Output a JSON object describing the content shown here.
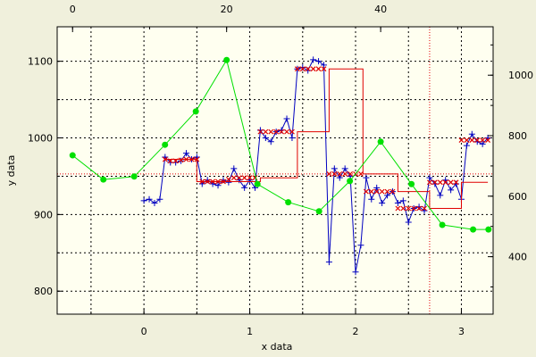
{
  "chart_data": {
    "type": "line",
    "title": "",
    "xlabel": "x data",
    "ylabel": "y data",
    "grid": true,
    "background": "#f0f0dc",
    "plot_background": "#fffff0",
    "grid_color": "#000000",
    "bottom_axis": {
      "range": [
        -0.82,
        3.3
      ],
      "ticks": [
        0,
        1,
        2,
        3
      ],
      "labels": [
        "0",
        "1",
        "2",
        "3"
      ],
      "grid_ticks": [
        -0.5,
        0,
        0.5,
        1,
        1.5,
        2,
        2.5,
        3
      ]
    },
    "top_axis": {
      "range": [
        -2.0,
        54.6
      ],
      "ticks": [
        0,
        20,
        40
      ],
      "labels": [
        "0",
        "20",
        "40"
      ]
    },
    "left_axis": {
      "range": [
        770,
        1145
      ],
      "ticks": [
        800,
        900,
        1000,
        1100
      ],
      "labels": [
        "800",
        "900",
        "1000",
        "1100"
      ],
      "grid_ticks": [
        800,
        850,
        900,
        950,
        1000,
        1050,
        1100
      ]
    },
    "right_axis": {
      "range": [
        210,
        1160
      ],
      "ticks": [
        400,
        600,
        800,
        1000
      ],
      "labels": [
        "400",
        "600",
        "800",
        "1000"
      ]
    },
    "reference_lines": {
      "horizontal": {
        "axis": "left",
        "value": 953,
        "color": "#e00000"
      },
      "vertical": {
        "axis": "bottom",
        "value": 2.7,
        "color": "#e00000"
      }
    },
    "series": [
      {
        "style": "markers",
        "marker": "plus",
        "color": "#0000c0",
        "axes": [
          "bottom",
          "left"
        ],
        "x": [
          0.0,
          0.05,
          0.1,
          0.15,
          0.2,
          0.25,
          0.3,
          0.35,
          0.4,
          0.45,
          0.5,
          0.55,
          0.6,
          0.65,
          0.7,
          0.75,
          0.8,
          0.85,
          0.9,
          0.95,
          1.0,
          1.05,
          1.1,
          1.15,
          1.2,
          1.25,
          1.3,
          1.35,
          1.4,
          1.45,
          1.5,
          1.55,
          1.6,
          1.65,
          1.7,
          1.75,
          1.8,
          1.85,
          1.9,
          1.95,
          2.0,
          2.05,
          2.1,
          2.15,
          2.2,
          2.25,
          2.3,
          2.35,
          2.4,
          2.45,
          2.5,
          2.55,
          2.6,
          2.65,
          2.7,
          2.75,
          2.8,
          2.85,
          2.9,
          2.95,
          3.0,
          3.05,
          3.1,
          3.15,
          3.2,
          3.25
        ],
        "y": [
          918,
          920,
          915,
          920,
          975,
          968,
          968,
          970,
          980,
          972,
          975,
          940,
          945,
          940,
          938,
          945,
          942,
          960,
          945,
          935,
          945,
          935,
          1010,
          1000,
          995,
          1008,
          1010,
          1025,
          1000,
          1090,
          1092,
          1088,
          1102,
          1100,
          1095,
          838,
          960,
          948,
          960,
          950,
          825,
          860,
          948,
          920,
          935,
          915,
          925,
          930,
          915,
          918,
          890,
          908,
          910,
          905,
          948,
          940,
          925,
          945,
          932,
          940,
          920,
          990,
          1005,
          995,
          992,
          1000
        ]
      },
      {
        "style": "line",
        "color": "#0000c0",
        "axes": [
          "bottom",
          "left"
        ],
        "x": [
          0.0,
          0.05,
          0.1,
          0.15,
          0.2,
          0.25,
          0.3,
          0.35,
          0.4,
          0.45,
          0.5,
          0.55,
          0.6,
          0.65,
          0.7,
          0.75,
          0.8,
          0.85,
          0.9,
          0.95,
          1.0,
          1.05,
          1.1,
          1.15,
          1.2,
          1.25,
          1.3,
          1.35,
          1.4,
          1.45,
          1.5,
          1.55,
          1.6,
          1.65,
          1.7,
          1.75,
          1.8,
          1.85,
          1.9,
          1.95,
          2.0,
          2.05,
          2.1,
          2.15,
          2.2,
          2.25,
          2.3,
          2.35,
          2.4,
          2.45,
          2.5,
          2.55,
          2.6,
          2.65,
          2.7,
          2.75,
          2.8,
          2.85,
          2.9,
          2.95,
          3.0,
          3.05,
          3.1,
          3.15,
          3.2,
          3.25
        ],
        "y": [
          918,
          920,
          915,
          920,
          975,
          968,
          968,
          970,
          980,
          972,
          975,
          940,
          945,
          940,
          938,
          945,
          942,
          960,
          945,
          935,
          945,
          935,
          1010,
          1000,
          995,
          1008,
          1010,
          1025,
          1000,
          1090,
          1092,
          1088,
          1102,
          1100,
          1095,
          838,
          960,
          948,
          960,
          950,
          825,
          860,
          948,
          920,
          935,
          915,
          925,
          930,
          915,
          918,
          890,
          908,
          910,
          905,
          948,
          940,
          925,
          945,
          932,
          940,
          920,
          990,
          1005,
          995,
          992,
          1000
        ]
      },
      {
        "style": "markers",
        "marker": "x",
        "color": "#e00000",
        "axes": [
          "bottom",
          "left"
        ],
        "x": [
          0.2,
          0.25,
          0.3,
          0.35,
          0.4,
          0.45,
          0.5,
          0.55,
          0.6,
          0.65,
          0.7,
          0.75,
          0.8,
          0.85,
          0.9,
          0.95,
          1.0,
          1.05,
          1.1,
          1.15,
          1.2,
          1.25,
          1.3,
          1.35,
          1.4,
          1.45,
          1.5,
          1.55,
          1.6,
          1.65,
          1.7,
          1.75,
          1.8,
          1.85,
          1.9,
          1.95,
          2.0,
          2.05,
          2.1,
          2.15,
          2.2,
          2.25,
          2.3,
          2.35,
          2.4,
          2.45,
          2.5,
          2.55,
          2.6,
          2.65,
          2.7,
          2.75,
          2.8,
          2.85,
          2.9,
          2.95,
          3.0,
          3.05,
          3.1,
          3.15,
          3.2,
          3.25
        ],
        "y": [
          972,
          970,
          970,
          971,
          972,
          972,
          972,
          943,
          943,
          943,
          943,
          943,
          946,
          948,
          948,
          948,
          948,
          948,
          1008,
          1008,
          1008,
          1008,
          1008,
          1008,
          1008,
          1090,
          1090,
          1090,
          1090,
          1090,
          1090,
          953,
          953,
          953,
          953,
          953,
          953,
          953,
          930,
          930,
          930,
          930,
          930,
          930,
          908,
          908,
          908,
          908,
          908,
          908,
          942,
          942,
          942,
          942,
          942,
          942,
          997,
          997,
          997,
          997,
          997,
          997
        ]
      },
      {
        "style": "step-line",
        "color": "#e00000",
        "axes": [
          "bottom",
          "left"
        ],
        "x": [
          0.2,
          0.5,
          0.5,
          1.1,
          1.1,
          1.45,
          1.45,
          1.75,
          1.75,
          2.07,
          2.07,
          2.4,
          2.4,
          2.7,
          2.7,
          3.0,
          3.0,
          3.25
        ],
        "y": [
          972,
          972,
          943,
          943,
          948,
          948,
          1008,
          1008,
          1090,
          1090,
          953,
          953,
          930,
          930,
          908,
          908,
          942,
          942
        ]
      },
      {
        "style": "line-markers",
        "marker": "circle",
        "color": "#00e000",
        "axes": [
          "top",
          "right"
        ],
        "x": [
          0,
          4,
          8,
          12,
          16,
          20,
          24,
          28,
          32,
          36,
          40,
          44,
          48,
          52,
          54
        ],
        "y": [
          735,
          655,
          665,
          770,
          880,
          1050,
          640,
          580,
          550,
          650,
          780,
          640,
          505,
          490,
          490
        ]
      }
    ]
  }
}
